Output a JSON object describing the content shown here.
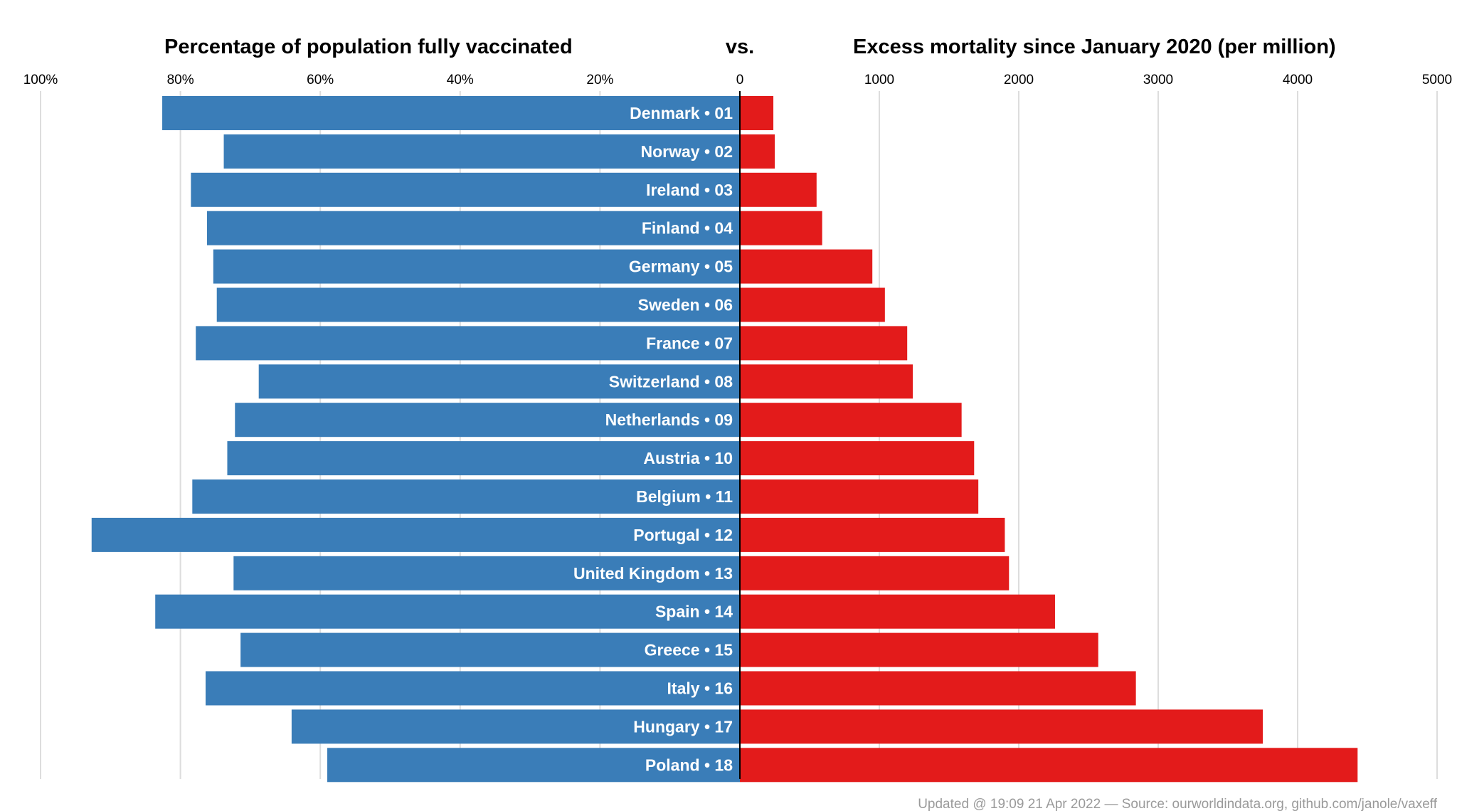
{
  "titles": {
    "left": "Percentage of population fully vaccinated",
    "middle": "vs.",
    "right": "Excess mortality since January 2020 (per million)"
  },
  "footer": "Updated @ 19:09 21 Apr 2022 — Source: ourworldindata.org, github.com/janole/vaxeff",
  "colors": {
    "vaccinated": "#3a7db8",
    "mortality": "#e31b1b"
  },
  "chart_data": {
    "type": "bar",
    "orientation": "horizontal-diverging",
    "categories": [
      "Denmark • 01",
      "Norway • 02",
      "Ireland • 03",
      "Finland • 04",
      "Germany • 05",
      "Sweden • 06",
      "France • 07",
      "Switzerland • 08",
      "Netherlands • 09",
      "Austria • 10",
      "Belgium • 11",
      "Portugal • 12",
      "United Kingdom • 13",
      "Spain • 14",
      "Greece • 15",
      "Italy • 16",
      "Hungary • 17",
      "Poland • 18"
    ],
    "series": [
      {
        "name": "Percentage of population fully vaccinated",
        "unit": "%",
        "values": [
          82.6,
          73.8,
          78.5,
          76.2,
          75.3,
          74.8,
          77.8,
          68.8,
          72.2,
          73.3,
          78.3,
          92.7,
          72.4,
          83.6,
          71.4,
          76.4,
          64.1,
          59.0
        ]
      },
      {
        "name": "Excess mortality since January 2020 (per million)",
        "unit": "per million",
        "values": [
          240,
          250,
          550,
          590,
          950,
          1040,
          1200,
          1240,
          1590,
          1680,
          1710,
          1900,
          1930,
          2260,
          2570,
          2840,
          3750,
          4430
        ]
      }
    ],
    "left_axis": {
      "domain": [
        0,
        100
      ],
      "direction": "reversed",
      "ticks": [
        0,
        20,
        40,
        60,
        80,
        100
      ],
      "tick_labels": [
        "0",
        "20%",
        "40%",
        "60%",
        "80%",
        "100%"
      ]
    },
    "right_axis": {
      "domain": [
        0,
        5000
      ],
      "ticks": [
        1000,
        2000,
        3000,
        4000,
        5000
      ],
      "tick_labels": [
        "1000",
        "2000",
        "3000",
        "4000",
        "5000"
      ]
    },
    "grid": true
  }
}
